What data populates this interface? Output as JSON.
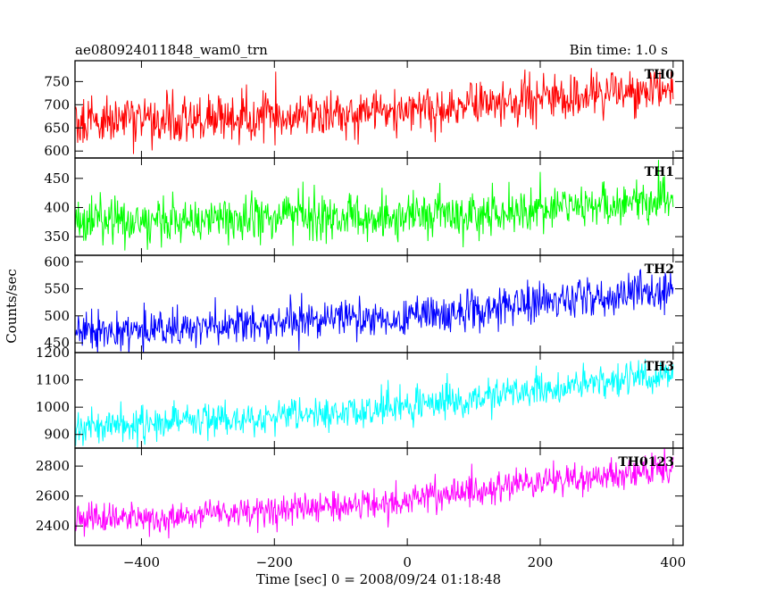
{
  "header": {
    "left_title": "ae080924011848_wam0_trn",
    "right_title": "Bin time: 1.0 s"
  },
  "axes": {
    "xlabel": "Time [sec] 0 = 2008/09/24 01:18:48",
    "ylabel": "Counts/sec"
  },
  "chart_data": {
    "type": "line",
    "title": "ae080924011848_wam0_trn",
    "bin_time": "Bin time: 1.0 s",
    "xlabel": "Time [sec] 0 = 2008/09/24 01:18:48",
    "ylabel": "Counts/sec",
    "xlim": [
      -500,
      415
    ],
    "x_ticks": [
      -400,
      -200,
      0,
      200,
      400
    ],
    "x_start": -500,
    "x_end": 400,
    "x_step": 1,
    "grid": false,
    "panels": [
      {
        "label": "TH0",
        "color": "#ff0000",
        "ylim": [
          585,
          795
        ],
        "y_ticks": [
          600,
          650,
          700,
          750
        ],
        "trend": [
          [
            -500,
            665
          ],
          [
            -100,
            675
          ],
          [
            0,
            685
          ],
          [
            400,
            735
          ]
        ],
        "scatter_sd": 26
      },
      {
        "label": "TH1",
        "color": "#00ff00",
        "ylim": [
          318,
          485
        ],
        "y_ticks": [
          350,
          400,
          450
        ],
        "trend": [
          [
            -500,
            375
          ],
          [
            0,
            385
          ],
          [
            400,
            412
          ]
        ],
        "scatter_sd": 20
      },
      {
        "label": "TH2",
        "color": "#0000ff",
        "ylim": [
          432,
          612
        ],
        "y_ticks": [
          450,
          500,
          550,
          600
        ],
        "trend": [
          [
            -500,
            470
          ],
          [
            -300,
            478
          ],
          [
            0,
            500
          ],
          [
            400,
            548
          ]
        ],
        "scatter_sd": 18
      },
      {
        "label": "TH3",
        "color": "#00ffff",
        "ylim": [
          850,
          1200
        ],
        "y_ticks": [
          900,
          1000,
          1100,
          1200
        ],
        "trend": [
          [
            -500,
            930
          ],
          [
            -100,
            975
          ],
          [
            0,
            1000
          ],
          [
            400,
            1125
          ]
        ],
        "scatter_sd": 30
      },
      {
        "label": "TH0123",
        "color": "#ff00ff",
        "ylim": [
          2270,
          2920
        ],
        "y_ticks": [
          2400,
          2600,
          2800
        ],
        "trend": [
          [
            -500,
            2440
          ],
          [
            -100,
            2520
          ],
          [
            0,
            2580
          ],
          [
            400,
            2790
          ]
        ],
        "scatter_sd": 55
      }
    ]
  }
}
